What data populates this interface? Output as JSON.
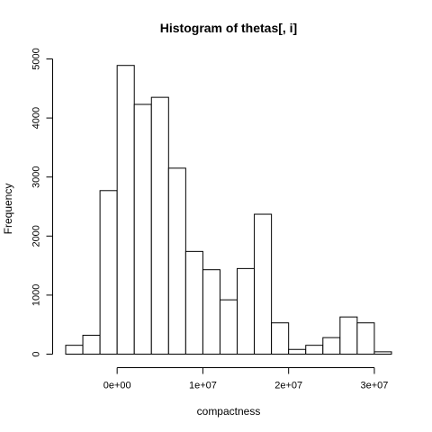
{
  "chart_data": {
    "type": "bar",
    "title": "Histogram of thetas[, i]",
    "xlabel": "compactness",
    "ylabel": "Frequency",
    "bin_width": 2000000,
    "bin_start": -6000000,
    "values": [
      150,
      320,
      2770,
      4890,
      4230,
      4350,
      3150,
      1740,
      1430,
      920,
      1450,
      2370,
      530,
      80,
      150,
      280,
      630,
      530,
      40
    ],
    "xlim": [
      -6000000,
      32000000
    ],
    "ylim": [
      0,
      5000
    ],
    "x_ticks": [
      0,
      10000000,
      20000000,
      30000000
    ],
    "x_tick_labels": [
      "0e+00",
      "1e+07",
      "2e+07",
      "3e+07"
    ],
    "y_ticks": [
      0,
      1000,
      2000,
      3000,
      4000,
      5000
    ],
    "y_tick_labels": [
      "0",
      "1000",
      "2000",
      "3000",
      "4000",
      "5000"
    ],
    "fill_color": "#ffffff",
    "stroke_color": "#000000"
  }
}
